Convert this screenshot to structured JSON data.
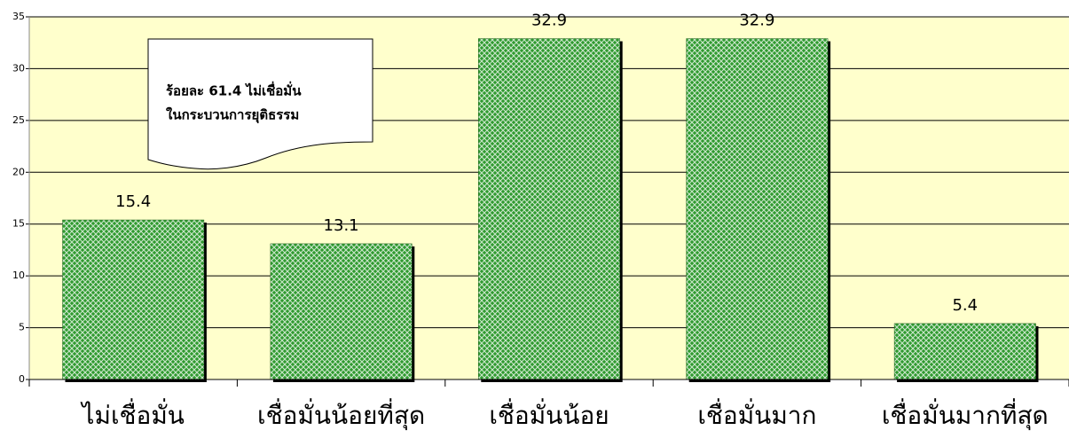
{
  "chart_data": {
    "type": "bar",
    "categories": [
      "ไม่เชื่อมั่น",
      "เชื่อมั่นน้อยที่สุด",
      "เชื่อมั่นน้อย",
      "เชื่อมั่นมาก",
      "เชื่อมั่นมากที่สุด"
    ],
    "values": [
      15.4,
      13.1,
      32.9,
      32.9,
      5.4
    ],
    "color": "#2f9a2f",
    "ylim": [
      0,
      35
    ],
    "yticks": [
      0,
      5,
      10,
      15,
      20,
      25,
      30,
      35
    ],
    "grid": true,
    "annotation": [
      "ร้อยละ 61.4 ไม่เชื่อมั่น",
      "ในกระบวนการยุติธรรม"
    ]
  }
}
